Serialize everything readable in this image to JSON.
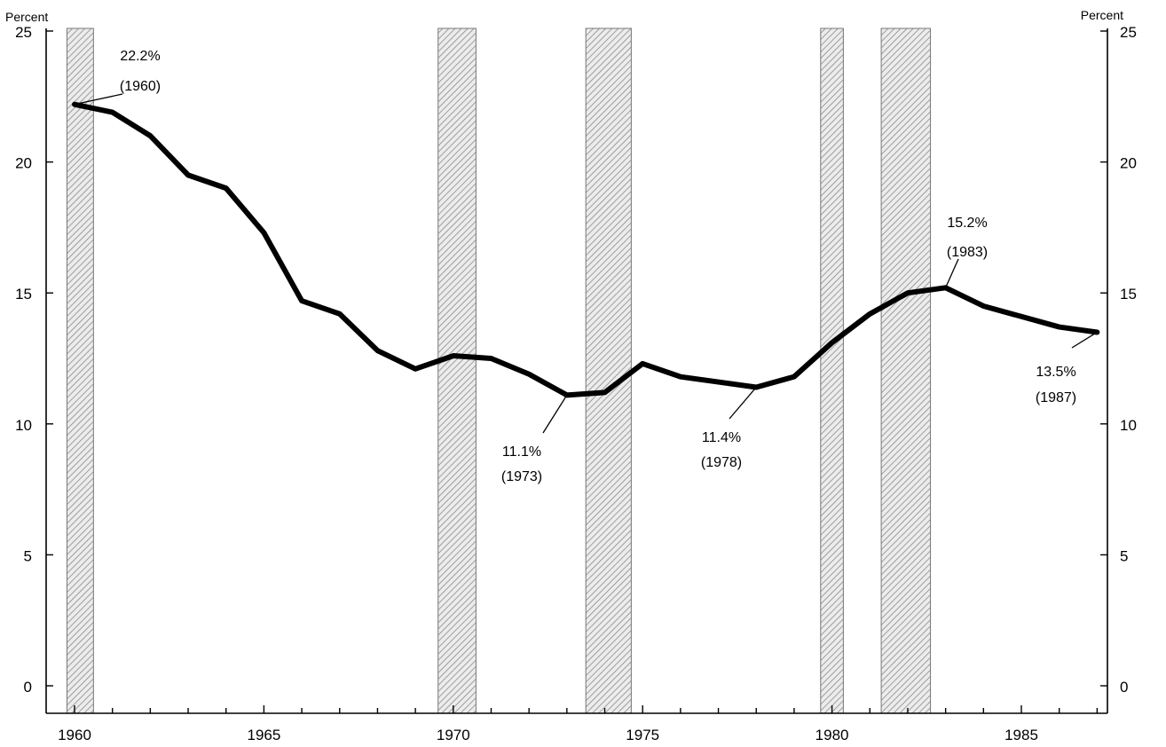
{
  "chart_data": {
    "type": "line",
    "y_unit_label_left": "Percent",
    "y_unit_label_right": "Percent",
    "xlim": [
      1959.6,
      1988.5
    ],
    "ylim": [
      -1,
      25
    ],
    "x_ticks": [
      1960,
      1965,
      1970,
      1975,
      1980,
      1985
    ],
    "y_ticks": [
      0,
      5,
      10,
      15,
      20,
      25
    ],
    "grid": false,
    "shaded_periods": [
      [
        1959.8,
        1960.5
      ],
      [
        1969.6,
        1970.6
      ],
      [
        1973.5,
        1974.7
      ],
      [
        1979.7,
        1980.3
      ],
      [
        1981.3,
        1982.6
      ]
    ],
    "series": [
      {
        "x": [
          1960,
          1961,
          1962,
          1963,
          1964,
          1965,
          1966,
          1967,
          1968,
          1969,
          1970,
          1971,
          1972,
          1973,
          1974,
          1975,
          1976,
          1977,
          1978,
          1979,
          1980,
          1981,
          1982,
          1983,
          1984,
          1985,
          1986,
          1987
        ],
        "values": [
          22.2,
          21.9,
          21.0,
          19.5,
          19.0,
          17.3,
          14.7,
          14.2,
          12.8,
          12.1,
          12.6,
          12.5,
          11.9,
          11.1,
          11.2,
          12.3,
          11.8,
          11.6,
          11.4,
          11.8,
          13.1,
          14.2,
          15.0,
          15.2,
          14.5,
          14.1,
          13.7,
          13.5
        ]
      }
    ],
    "annotations": [
      {
        "value": "22.2%",
        "year": "(1960)",
        "x": 1960,
        "y": 22.2
      },
      {
        "value": "11.1%",
        "year": "(1973)",
        "x": 1973,
        "y": 11.1
      },
      {
        "value": "11.4%",
        "year": "(1978)",
        "x": 1978,
        "y": 11.4
      },
      {
        "value": "15.2%",
        "year": "(1983)",
        "x": 1983,
        "y": 15.2
      },
      {
        "value": "13.5%",
        "year": "(1987)",
        "x": 1987,
        "y": 13.5
      }
    ]
  }
}
